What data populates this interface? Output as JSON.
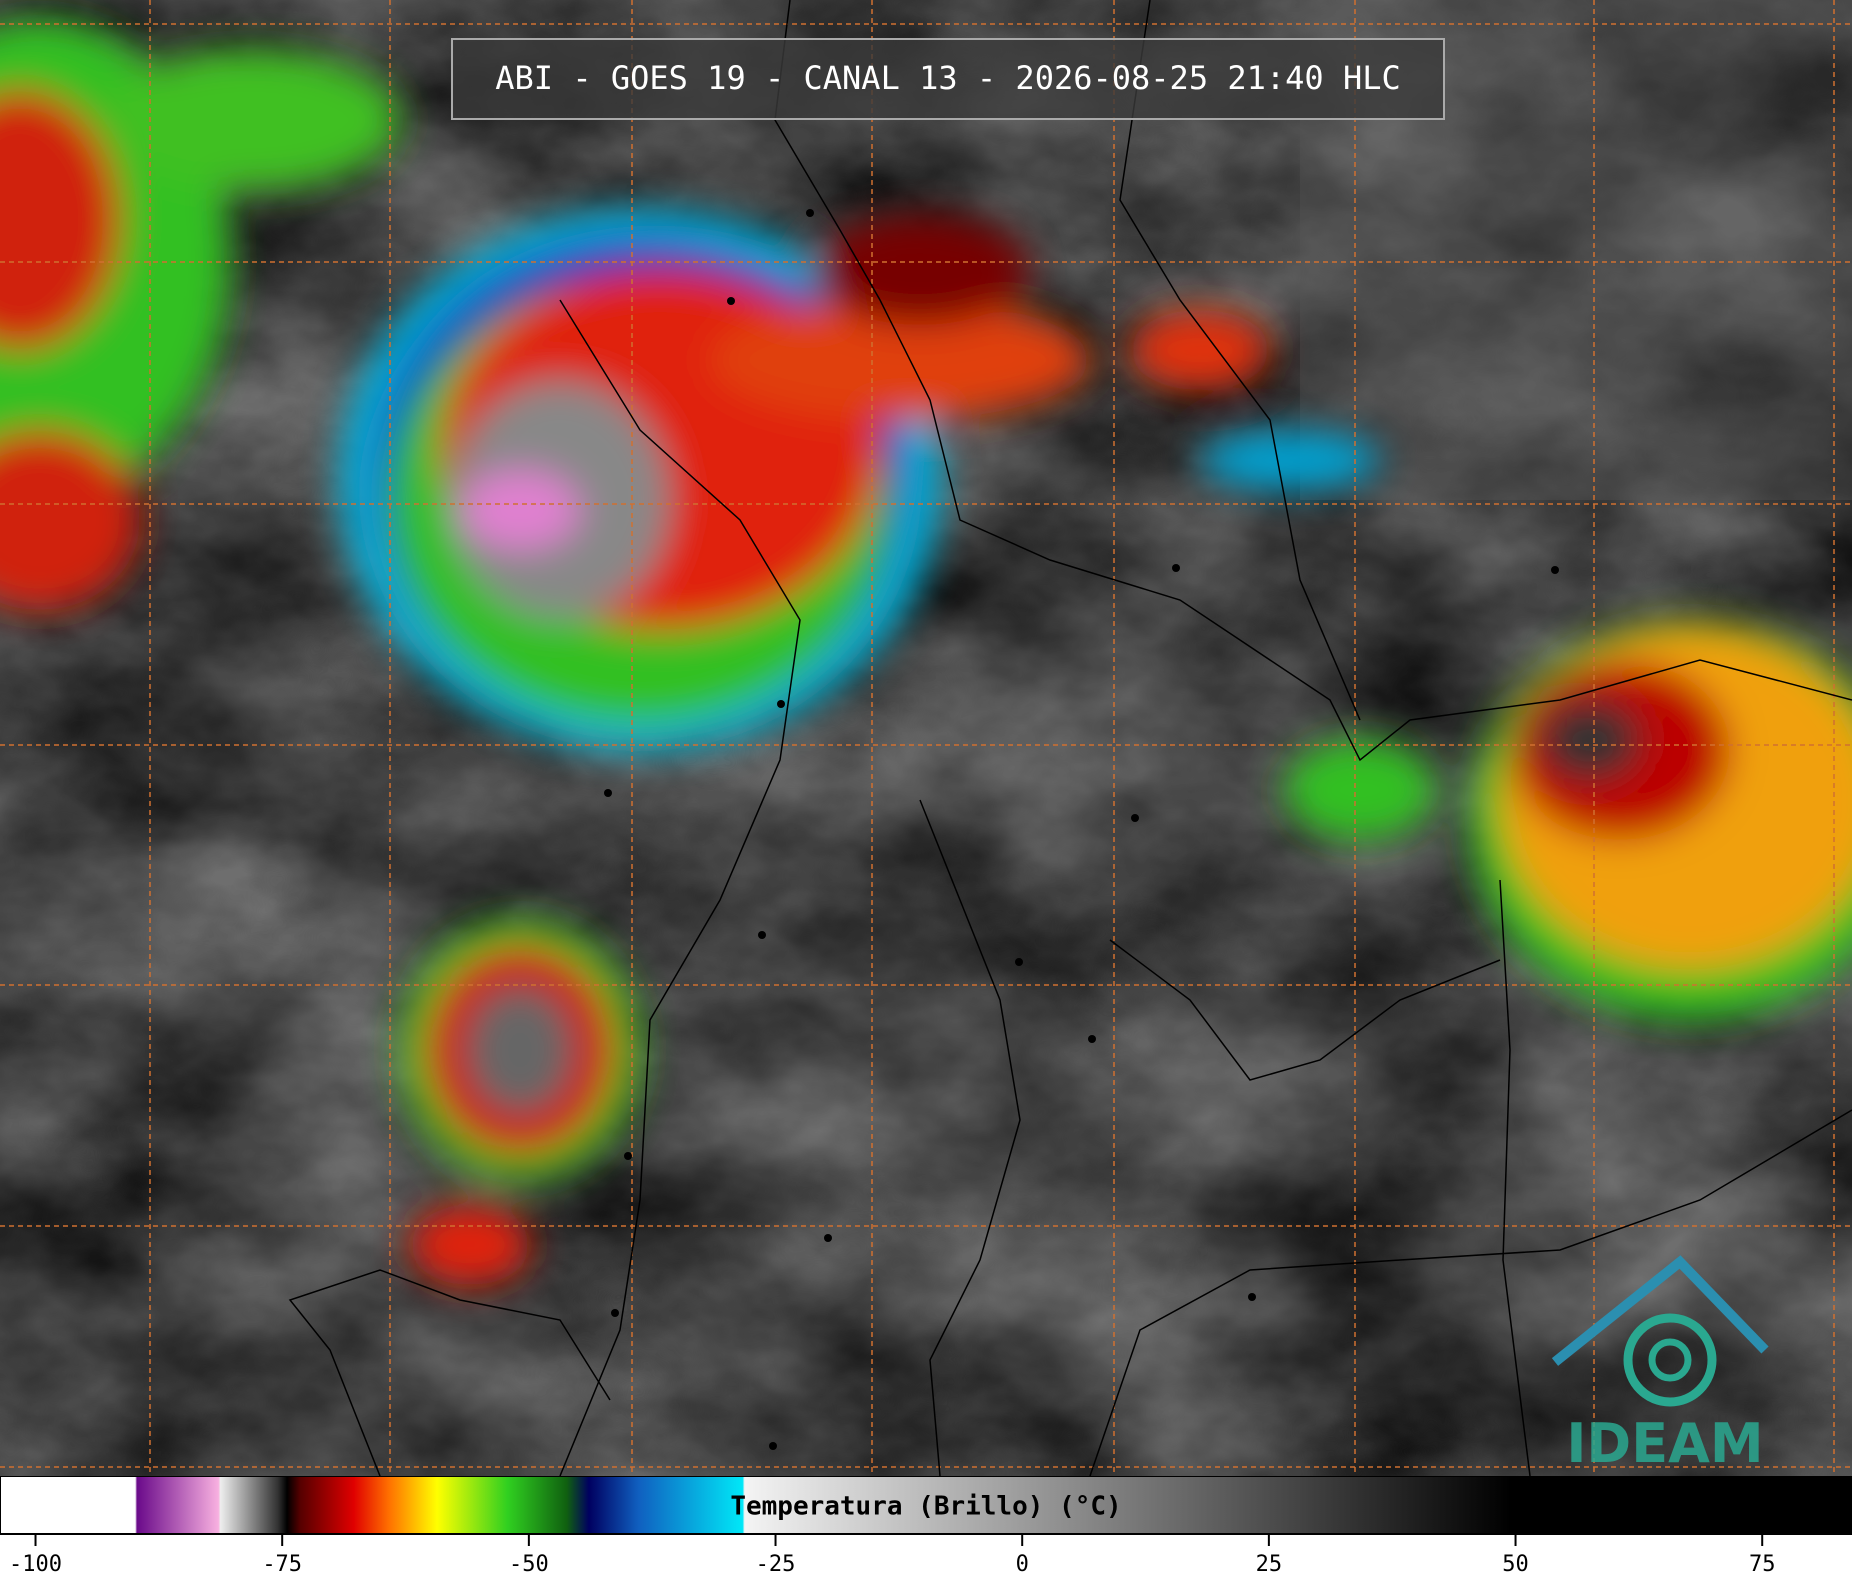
{
  "header": {
    "title": "ABI - GOES 19 - CANAL 13 - 2026-08-25 21:40 HLC"
  },
  "colorbar": {
    "label": "Temperatura (Brillo) (°C)",
    "xlim": [
      -103.6,
      84.1
    ],
    "xticks": [
      -100,
      -75,
      -50,
      -25,
      0,
      25,
      50,
      75
    ]
  },
  "logo": {
    "text": "IDEAM"
  }
}
